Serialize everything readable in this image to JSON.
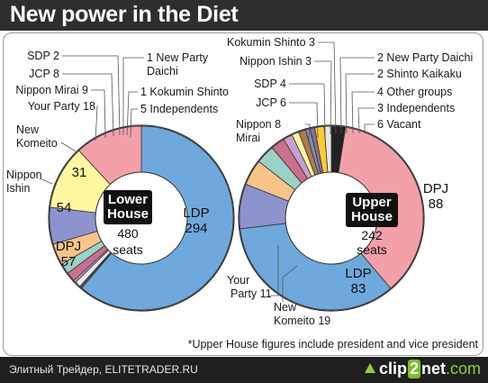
{
  "title": "New power in the Diet",
  "footer": {
    "credit": "Элитный Трейдер, ELITETRADER.RU",
    "logo_main": "clip",
    "logo_two": "2",
    "logo_rest": "net",
    "logo_tld": ".com"
  },
  "note": "*Upper House figures include president and vice president",
  "colors": {
    "LDP": "#6fa8dc",
    "DPJ": "#f4a0a8",
    "Nippon Ishin": "#fff7a0",
    "New Komeito": "#8d93cc",
    "Your Party": "#f7c48a",
    "Nippon Mirai": "#9ad2c8",
    "JCP": "#cc6f8c",
    "SDP": "#c8a0d0",
    "New Party Daichi": "#7a8fb0",
    "Kokumin Shinto": "#b07a4a",
    "Independents": "#e8e8e8",
    "Shinto Kaikaku": "#8a6aa0",
    "Other groups": "#ffcc33",
    "Vacant": "#222222"
  },
  "chart_data": [
    {
      "type": "pie",
      "donut": true,
      "center_title": [
        "Lower",
        "House"
      ],
      "center_total": "480",
      "center_unit": "seats",
      "categories": [
        "LDP",
        "New Party Daichi",
        "Kokumin Shinto",
        "Independents",
        "SDP",
        "JCP",
        "Nippon Mirai",
        "Your Party",
        "New Komeito",
        "Nippon Ishin",
        "DPJ"
      ],
      "values": [
        294,
        1,
        1,
        5,
        2,
        8,
        9,
        18,
        31,
        54,
        57
      ],
      "outside_labels": [
        {
          "text": "1 New Party",
          "text2": "Daichi",
          "party": "New Party Daichi"
        },
        {
          "text": "1 Kokumin Shinto",
          "party": "Kokumin Shinto"
        },
        {
          "text": "5 Independents",
          "party": "Independents"
        },
        {
          "text": "SDP 2",
          "party": "SDP"
        },
        {
          "text": "JCP 8",
          "party": "JCP"
        },
        {
          "text": "Nippon Mirai 9",
          "party": "Nippon Mirai"
        },
        {
          "text": "Your Party 18",
          "party": "Your Party"
        },
        {
          "text": "New",
          "text2": "Komeito",
          "party": "New Komeito"
        },
        {
          "text": "Nippon",
          "text2": "Ishin",
          "party": "Nippon Ishin"
        }
      ],
      "inside_labels": [
        {
          "text": "LDP",
          "text2": "294",
          "party": "LDP"
        },
        {
          "text": "31",
          "party": "New Komeito"
        },
        {
          "text": "54",
          "party": "Nippon Ishin"
        },
        {
          "text": "DPJ",
          "text2": "57",
          "party": "DPJ"
        }
      ]
    },
    {
      "type": "pie",
      "donut": true,
      "center_title": [
        "Upper",
        "House"
      ],
      "center_total": "242",
      "center_unit": "seats",
      "categories": [
        "Vacant",
        "DPJ",
        "LDP",
        "New Komeito",
        "Your Party",
        "Nippon Mirai",
        "JCP",
        "SDP",
        "Nippon Ishin",
        "Kokumin Shinto",
        "New Party Daichi",
        "Shinto Kaikaku",
        "Other groups",
        "Independents"
      ],
      "values": [
        6,
        88,
        83,
        19,
        11,
        8,
        6,
        4,
        3,
        3,
        2,
        2,
        4,
        3
      ],
      "outside_labels": [
        {
          "text": "Kokumin Shinto 3",
          "party": "Kokumin Shinto"
        },
        {
          "text": "Nippon Ishin 3",
          "party": "Nippon Ishin"
        },
        {
          "text": "SDP 4",
          "party": "SDP"
        },
        {
          "text": "JCP 6",
          "party": "JCP"
        },
        {
          "text": "Nippon 8",
          "text2": "Mirai",
          "party": "Nippon Mirai"
        },
        {
          "text": "2 New Party Daichi",
          "party": "New Party Daichi"
        },
        {
          "text": "2 Shinto Kaikaku",
          "party": "Shinto Kaikaku"
        },
        {
          "text": "4 Other groups",
          "party": "Other groups"
        },
        {
          "text": "3 Independents",
          "party": "Independents"
        },
        {
          "text": "6 Vacant",
          "party": "Vacant"
        },
        {
          "text": "Your",
          "text2": "Party 11",
          "party": "Your Party"
        },
        {
          "text": "New",
          "text2": "Komeito 19",
          "party": "New Komeito"
        }
      ],
      "inside_labels": [
        {
          "text": "DPJ",
          "text2": "88",
          "party": "DPJ"
        },
        {
          "text": "LDP",
          "text2": "83",
          "party": "LDP"
        }
      ]
    }
  ]
}
